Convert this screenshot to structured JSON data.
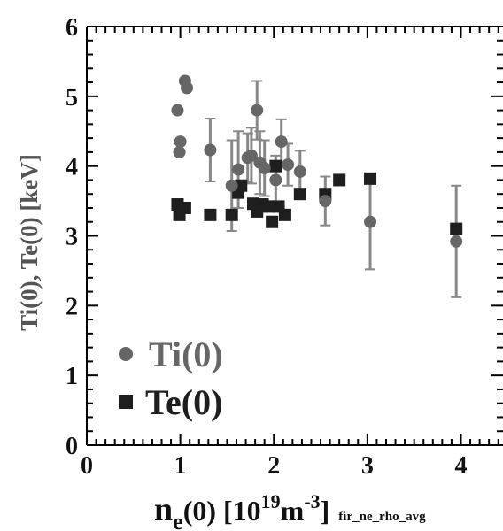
{
  "chart_data": {
    "type": "scatter",
    "title": "",
    "ylabel": "Ti(0), Te(0) [keV]",
    "xlabel": {
      "n": "n",
      "sub_e": "e",
      "mid": "(0) [10",
      "sup_19": "19",
      "m": "m",
      "sup_m3": "-3",
      "close": "]",
      "suffix": "fir_ne_rho_avg"
    },
    "xlim": [
      0,
      4.45
    ],
    "ylim": [
      0,
      6
    ],
    "x_ticks": [
      "0",
      "1",
      "2",
      "3",
      "4"
    ],
    "y_ticks": [
      "0",
      "1",
      "2",
      "3",
      "4",
      "5",
      "6"
    ],
    "grid": false,
    "legend_position": "bottom-left",
    "colors": {
      "ti": "#666666",
      "te": "#1e1e1e",
      "errorbar": "#888888",
      "axis": "#000000"
    },
    "series": [
      {
        "name": "Ti(0)",
        "marker": "circle",
        "points": [
          {
            "x": 0.97,
            "y": 4.8
          },
          {
            "x": 0.99,
            "y": 4.2
          },
          {
            "x": 1.0,
            "y": 4.35
          },
          {
            "x": 1.05,
            "y": 5.22
          },
          {
            "x": 1.07,
            "y": 5.12
          },
          {
            "x": 1.32,
            "y": 4.23,
            "err": 0.45
          },
          {
            "x": 1.55,
            "y": 3.72,
            "err": 0.65
          },
          {
            "x": 1.62,
            "y": 3.95,
            "err": 0.55
          },
          {
            "x": 1.72,
            "y": 4.12,
            "err": 0.35
          },
          {
            "x": 1.76,
            "y": 4.15,
            "err": 0.4
          },
          {
            "x": 1.82,
            "y": 4.8,
            "err": 0.42
          },
          {
            "x": 1.85,
            "y": 4.05,
            "err": 0.45
          },
          {
            "x": 1.9,
            "y": 3.97,
            "err": 0.4
          },
          {
            "x": 2.02,
            "y": 3.8,
            "err": 0.35
          },
          {
            "x": 2.08,
            "y": 4.35,
            "err": 0.32
          },
          {
            "x": 2.15,
            "y": 4.02,
            "err": 0.3
          },
          {
            "x": 2.28,
            "y": 3.92,
            "err": 0.3
          },
          {
            "x": 2.55,
            "y": 3.5,
            "err": 0.35
          },
          {
            "x": 3.03,
            "y": 3.2,
            "err": 0.68
          },
          {
            "x": 3.95,
            "y": 2.92,
            "err": 0.8
          }
        ]
      },
      {
        "name": "Te(0)",
        "marker": "square",
        "points": [
          {
            "x": 0.97,
            "y": 3.45
          },
          {
            "x": 0.99,
            "y": 3.3
          },
          {
            "x": 1.05,
            "y": 3.4
          },
          {
            "x": 1.32,
            "y": 3.3
          },
          {
            "x": 1.55,
            "y": 3.3
          },
          {
            "x": 1.62,
            "y": 3.62
          },
          {
            "x": 1.65,
            "y": 3.72
          },
          {
            "x": 1.78,
            "y": 3.46
          },
          {
            "x": 1.82,
            "y": 3.35
          },
          {
            "x": 1.88,
            "y": 3.45
          },
          {
            "x": 1.95,
            "y": 3.42
          },
          {
            "x": 1.98,
            "y": 3.2
          },
          {
            "x": 2.02,
            "y": 4.0
          },
          {
            "x": 2.05,
            "y": 3.42
          },
          {
            "x": 2.12,
            "y": 3.3
          },
          {
            "x": 2.28,
            "y": 3.6
          },
          {
            "x": 2.55,
            "y": 3.6
          },
          {
            "x": 2.7,
            "y": 3.8
          },
          {
            "x": 3.03,
            "y": 3.82
          },
          {
            "x": 3.95,
            "y": 3.1
          }
        ]
      }
    ]
  }
}
